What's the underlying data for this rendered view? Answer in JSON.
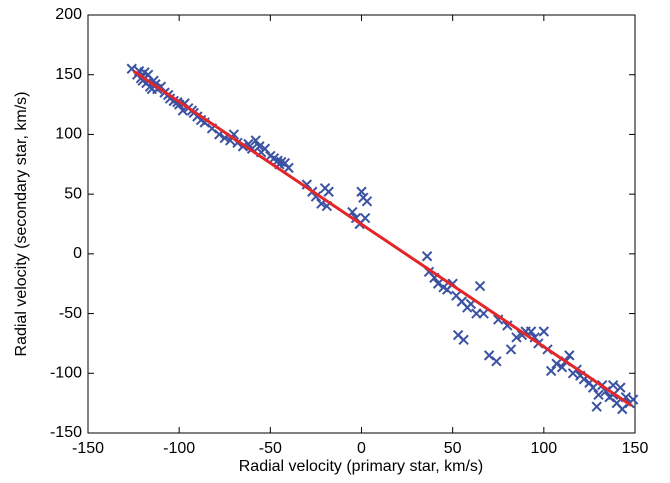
{
  "chart_data": {
    "type": "scatter",
    "x_label": "Radial velocity (primary star, km/s)",
    "y_label": "Radial velocity (secondary star, km/s)",
    "xlim": [
      -150,
      150
    ],
    "ylim": [
      -150,
      200
    ],
    "xticks": [
      -150,
      -100,
      -50,
      0,
      50,
      100,
      150
    ],
    "yticks": [
      -150,
      -100,
      -50,
      0,
      50,
      100,
      150,
      200
    ],
    "series": [
      {
        "kind": "scatter",
        "color": "#3b52a3",
        "x": [
          -126,
          -123,
          -122,
          -121,
          -120,
          -119,
          -118,
          -117,
          -116,
          -115,
          -114,
          -113,
          -112,
          -110,
          -108,
          -106,
          -105,
          -103,
          -101,
          -100,
          -98,
          -97,
          -95,
          -93,
          -92,
          -90,
          -88,
          -86,
          -82,
          -78,
          -75,
          -72,
          -70,
          -68,
          -65,
          -62,
          -60,
          -58,
          -56,
          -55,
          -53,
          -50,
          -48,
          -46,
          -45,
          -44,
          -42,
          -40,
          -30,
          -27,
          -25,
          -22,
          -20,
          -18,
          -19,
          -5,
          -3,
          0,
          1,
          3,
          -1,
          2,
          36,
          37,
          40,
          42,
          45,
          47,
          50,
          52,
          53,
          56,
          55,
          58,
          60,
          63,
          65,
          67,
          70,
          74,
          75,
          80,
          82,
          85,
          88,
          90,
          93,
          95,
          97,
          100,
          102,
          104,
          107,
          110,
          112,
          114,
          116,
          118,
          120,
          122,
          125,
          127,
          129,
          130,
          132,
          134,
          136,
          138,
          140,
          142,
          145,
          147,
          149,
          143,
          138
        ],
        "values": [
          155,
          150,
          153,
          147,
          145,
          152,
          143,
          150,
          140,
          138,
          145,
          142,
          138,
          140,
          135,
          133,
          130,
          128,
          127,
          125,
          120,
          126,
          122,
          120,
          118,
          115,
          112,
          110,
          105,
          100,
          97,
          95,
          100,
          93,
          90,
          92,
          88,
          95,
          90,
          85,
          88,
          82,
          80,
          78,
          75,
          77,
          76,
          72,
          58,
          52,
          48,
          42,
          55,
          52,
          40,
          35,
          30,
          52,
          47,
          44,
          25,
          30,
          -2,
          -15,
          -20,
          -25,
          -28,
          -30,
          -25,
          -35,
          -68,
          -72,
          -40,
          -45,
          -42,
          -50,
          -27,
          -50,
          -85,
          -90,
          -55,
          -60,
          -80,
          -70,
          -68,
          -65,
          -65,
          -70,
          -75,
          -65,
          -80,
          -98,
          -92,
          -95,
          -90,
          -85,
          -100,
          -97,
          -102,
          -105,
          -108,
          -112,
          -128,
          -118,
          -110,
          -115,
          -120,
          -118,
          -125,
          -112,
          -120,
          -125,
          -122,
          -130,
          -110
        ]
      },
      {
        "kind": "line",
        "color": "#e3262a",
        "x": [
          -125,
          148
        ],
        "values": [
          153,
          -127
        ]
      }
    ]
  }
}
